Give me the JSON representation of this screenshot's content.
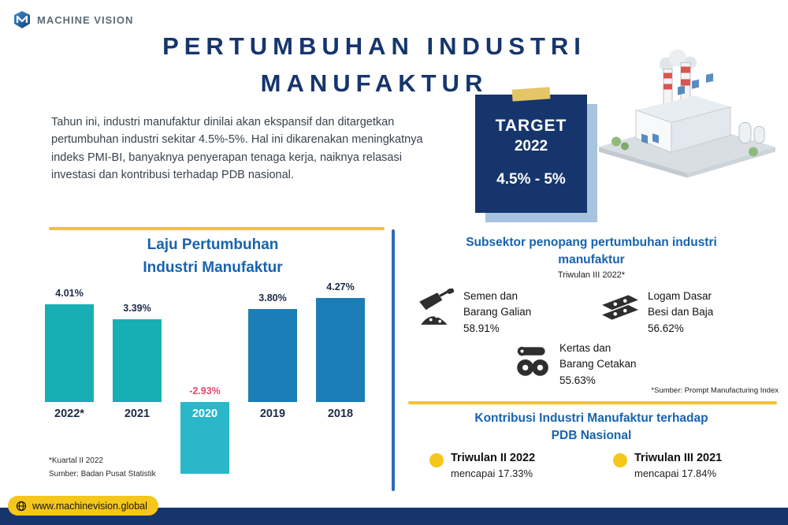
{
  "brand": {
    "logo_letter": "M",
    "name": "MACHINE VISION",
    "website": "www.machinevision.global"
  },
  "title": {
    "line1": "PERTUMBUHAN INDUSTRI",
    "line2": "MANUFAKTUR"
  },
  "intro": "Tahun ini, industri manufaktur dinilai akan ekspansif dan ditargetkan pertumbuhan industri sekitar 4.5%-5%. Hal ini dikarenakan meningkatnya indeks PMI-BI, banyaknya penyerapan tenaga kerja, naiknya relasasi investasi dan kontribusi terhadap PDB nasional.",
  "target_box": {
    "label": "TARGET",
    "year": "2022",
    "value": "4.5% - 5%"
  },
  "chart_section": {
    "title_line1": "Laju Pertumbuhan",
    "title_line2": "Industri Manufaktur",
    "footnote_line1": "*Kuartal II 2022",
    "footnote_line2": "Sumber: Badan Pusat Statistik"
  },
  "chart_data": {
    "type": "bar",
    "title": "Laju Pertumbuhan Industri Manufaktur",
    "categories": [
      "2022*",
      "2021",
      "2020",
      "2019",
      "2018"
    ],
    "values": [
      4.01,
      3.39,
      -2.93,
      3.8,
      4.27
    ],
    "labels": [
      "4.01%",
      "3.39%",
      "-2.93%",
      "3.80%",
      "4.27%"
    ],
    "bar_colors": [
      "#17AFB4",
      "#17AFB4",
      "#29B7C9",
      "#1C7EB7",
      "#1C7EB7"
    ],
    "negative_label_color": "#E8476F",
    "xlabel": "",
    "ylabel": "",
    "ylim": [
      -3.5,
      4.5
    ],
    "grid": false,
    "legend": false
  },
  "subsector": {
    "title_line1": "Subsektor penopang pertumbuhan industri",
    "title_line2": "manufaktur",
    "subtitle": "Triwulan III 2022*",
    "items": [
      {
        "icon": "cement-icon",
        "line1": "Semen dan",
        "line2": "Barang Galian",
        "value": "58.91%"
      },
      {
        "icon": "steel-icon",
        "line1": "Logam Dasar",
        "line2": "Besi dan Baja",
        "value": "56.62%"
      },
      {
        "icon": "paper-icon",
        "line1": "Kertas dan",
        "line2": "Barang Cetakan",
        "value": "55.63%"
      }
    ],
    "footnote": "*Sumber: Prompt Manufacturing Index"
  },
  "kontribusi": {
    "title_line1": "Kontribusi Industri Manufaktur terhadap",
    "title_line2": "PDB Nasional",
    "items": [
      {
        "label": "Triwulan II 2022",
        "value": "mencapai 17.33%"
      },
      {
        "label": "Triwulan III 2021",
        "value": "mencapai 17.84%"
      }
    ]
  },
  "colors": {
    "navy": "#16356D",
    "heading_blue": "#1763AF",
    "accent_yellow": "#F2C230",
    "pill_yellow": "#F5C71A",
    "teal": "#17AFB4",
    "cyan": "#29B7C9",
    "bar_blue": "#1C7EB7",
    "negative_pink": "#E8476F",
    "divider_blue": "#2D6CB5"
  }
}
